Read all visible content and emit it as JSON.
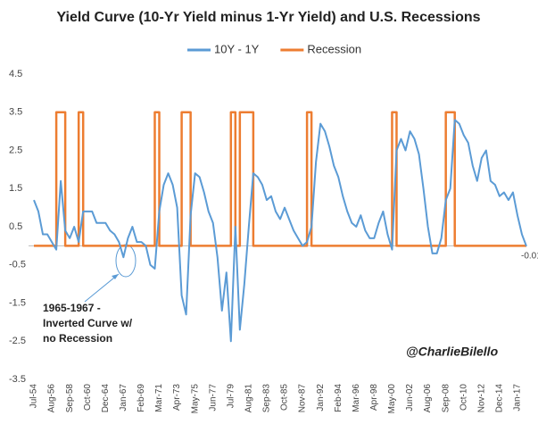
{
  "chart_data": {
    "type": "line",
    "title": "Yield Curve (10-Yr Yield minus 1-Yr Yield) and U.S. Recessions",
    "categories": [
      "Jul-54",
      null,
      null,
      null,
      "Aug-56",
      null,
      null,
      null,
      "Sep-58",
      null,
      null,
      null,
      "Oct-60",
      null,
      null,
      null,
      "Dec-64",
      null,
      null,
      null,
      "Jan-67",
      null,
      null,
      null,
      "Feb-69",
      null,
      null,
      null,
      "Mar-71",
      null,
      null,
      null,
      "Apr-73",
      null,
      null,
      null,
      "May-75",
      null,
      null,
      null,
      "Jun-77",
      null,
      null,
      null,
      "Jul-79",
      null,
      null,
      null,
      "Aug-81",
      null,
      null,
      null,
      "Sep-83",
      null,
      null,
      null,
      "Oct-85",
      null,
      null,
      null,
      "Nov-87",
      null,
      null,
      null,
      "Jan-92",
      null,
      null,
      null,
      "Feb-94",
      null,
      null,
      null,
      "Mar-96",
      null,
      null,
      null,
      "Apr-98",
      null,
      null,
      null,
      "May-00",
      null,
      null,
      null,
      "Jun-02",
      null,
      null,
      null,
      "Aug-06",
      null,
      null,
      null,
      "Sep-08",
      null,
      null,
      null,
      "Oct-10",
      null,
      null,
      null,
      "Nov-12",
      null,
      null,
      null,
      "Dec-14",
      null,
      null,
      null,
      "Jan-17",
      null,
      null
    ],
    "series": [
      {
        "name": "10Y - 1Y",
        "color": "#5b9bd5",
        "values": [
          1.2,
          0.9,
          0.3,
          0.3,
          0.1,
          -0.1,
          1.7,
          0.4,
          0.2,
          0.5,
          0.1,
          0.9,
          0.9,
          0.9,
          0.6,
          0.6,
          0.6,
          0.4,
          0.3,
          0.1,
          -0.3,
          0.2,
          0.5,
          0.1,
          0.1,
          0.0,
          -0.5,
          -0.6,
          0.9,
          1.6,
          1.9,
          1.6,
          1.0,
          -1.3,
          -1.8,
          0.8,
          1.9,
          1.8,
          1.4,
          0.9,
          0.6,
          -0.3,
          -1.7,
          -0.7,
          -2.5,
          0.5,
          -2.2,
          -1.0,
          0.5,
          1.9,
          1.8,
          1.6,
          1.2,
          1.3,
          0.9,
          0.7,
          1.0,
          0.7,
          0.4,
          0.2,
          0.0,
          0.1,
          0.5,
          2.2,
          3.2,
          3.0,
          2.6,
          2.1,
          1.8,
          1.3,
          0.9,
          0.6,
          0.5,
          0.8,
          0.4,
          0.2,
          0.2,
          0.6,
          0.9,
          0.3,
          -0.1,
          2.5,
          2.8,
          2.5,
          3.0,
          2.8,
          2.4,
          1.5,
          0.5,
          -0.2,
          -0.2,
          0.2,
          1.2,
          1.5,
          3.3,
          3.2,
          2.9,
          2.7,
          2.1,
          1.7,
          2.3,
          2.5,
          1.7,
          1.6,
          1.3,
          1.4,
          1.2,
          1.4,
          0.8,
          0.3,
          -0.01
        ],
        "value_labels": [
          null,
          null,
          null,
          null,
          null,
          null,
          null,
          null,
          null,
          null,
          null,
          null,
          null,
          null,
          null,
          null,
          null,
          null,
          null,
          null,
          null,
          null,
          null,
          null,
          null,
          null,
          null,
          null,
          null,
          null,
          null,
          null,
          null,
          null,
          null,
          null,
          null,
          null,
          null,
          null,
          null,
          null,
          null,
          null,
          null,
          null,
          null,
          null,
          null,
          null,
          null,
          null,
          null,
          null,
          null,
          null,
          null,
          null,
          null,
          null,
          null,
          null,
          null,
          null,
          null,
          null,
          null,
          null,
          null,
          null,
          null,
          null,
          null,
          null,
          null,
          null,
          null,
          null,
          null,
          null,
          null,
          null,
          null,
          null,
          null,
          null,
          null,
          null,
          null,
          null,
          null,
          null,
          null,
          null,
          null,
          null,
          null,
          null,
          null,
          null,
          null,
          null,
          null,
          null,
          null,
          null,
          null,
          null,
          null,
          null,
          "-0.01"
        ]
      },
      {
        "name": "Recession",
        "color": "#ed7d31",
        "step": true,
        "values": [
          0,
          0,
          0,
          0,
          0,
          3.5,
          3.5,
          0,
          0,
          0,
          3.5,
          0,
          0,
          0,
          0,
          0,
          0,
          0,
          0,
          0,
          0,
          0,
          0,
          0,
          0,
          0,
          0,
          3.5,
          0,
          0,
          0,
          0,
          0,
          3.5,
          3.5,
          0,
          0,
          0,
          0,
          0,
          0,
          0,
          0,
          0,
          3.5,
          0,
          3.5,
          3.5,
          3.5,
          0,
          0,
          0,
          0,
          0,
          0,
          0,
          0,
          0,
          0,
          0,
          0,
          3.5,
          0,
          0,
          0,
          0,
          0,
          0,
          0,
          0,
          0,
          0,
          0,
          0,
          0,
          0,
          0,
          0,
          0,
          0,
          3.5,
          0,
          0,
          0,
          0,
          0,
          0,
          0,
          0,
          0,
          0,
          0,
          3.5,
          3.5,
          0,
          0,
          0,
          0,
          0,
          0,
          0,
          0,
          0,
          0,
          0,
          0,
          0,
          0,
          0,
          0,
          0
        ]
      }
    ],
    "ylim": [
      -3.5,
      4.5
    ],
    "yticks": [
      -3.5,
      -2.5,
      -1.5,
      -0.5,
      0.5,
      1.5,
      2.5,
      3.5,
      4.5
    ],
    "grid": false,
    "legend": "top",
    "annotations": [
      "1965-1967  -",
      "Inverted Curve w/",
      "no Recession"
    ],
    "watermark": "@CharlieBilello"
  }
}
